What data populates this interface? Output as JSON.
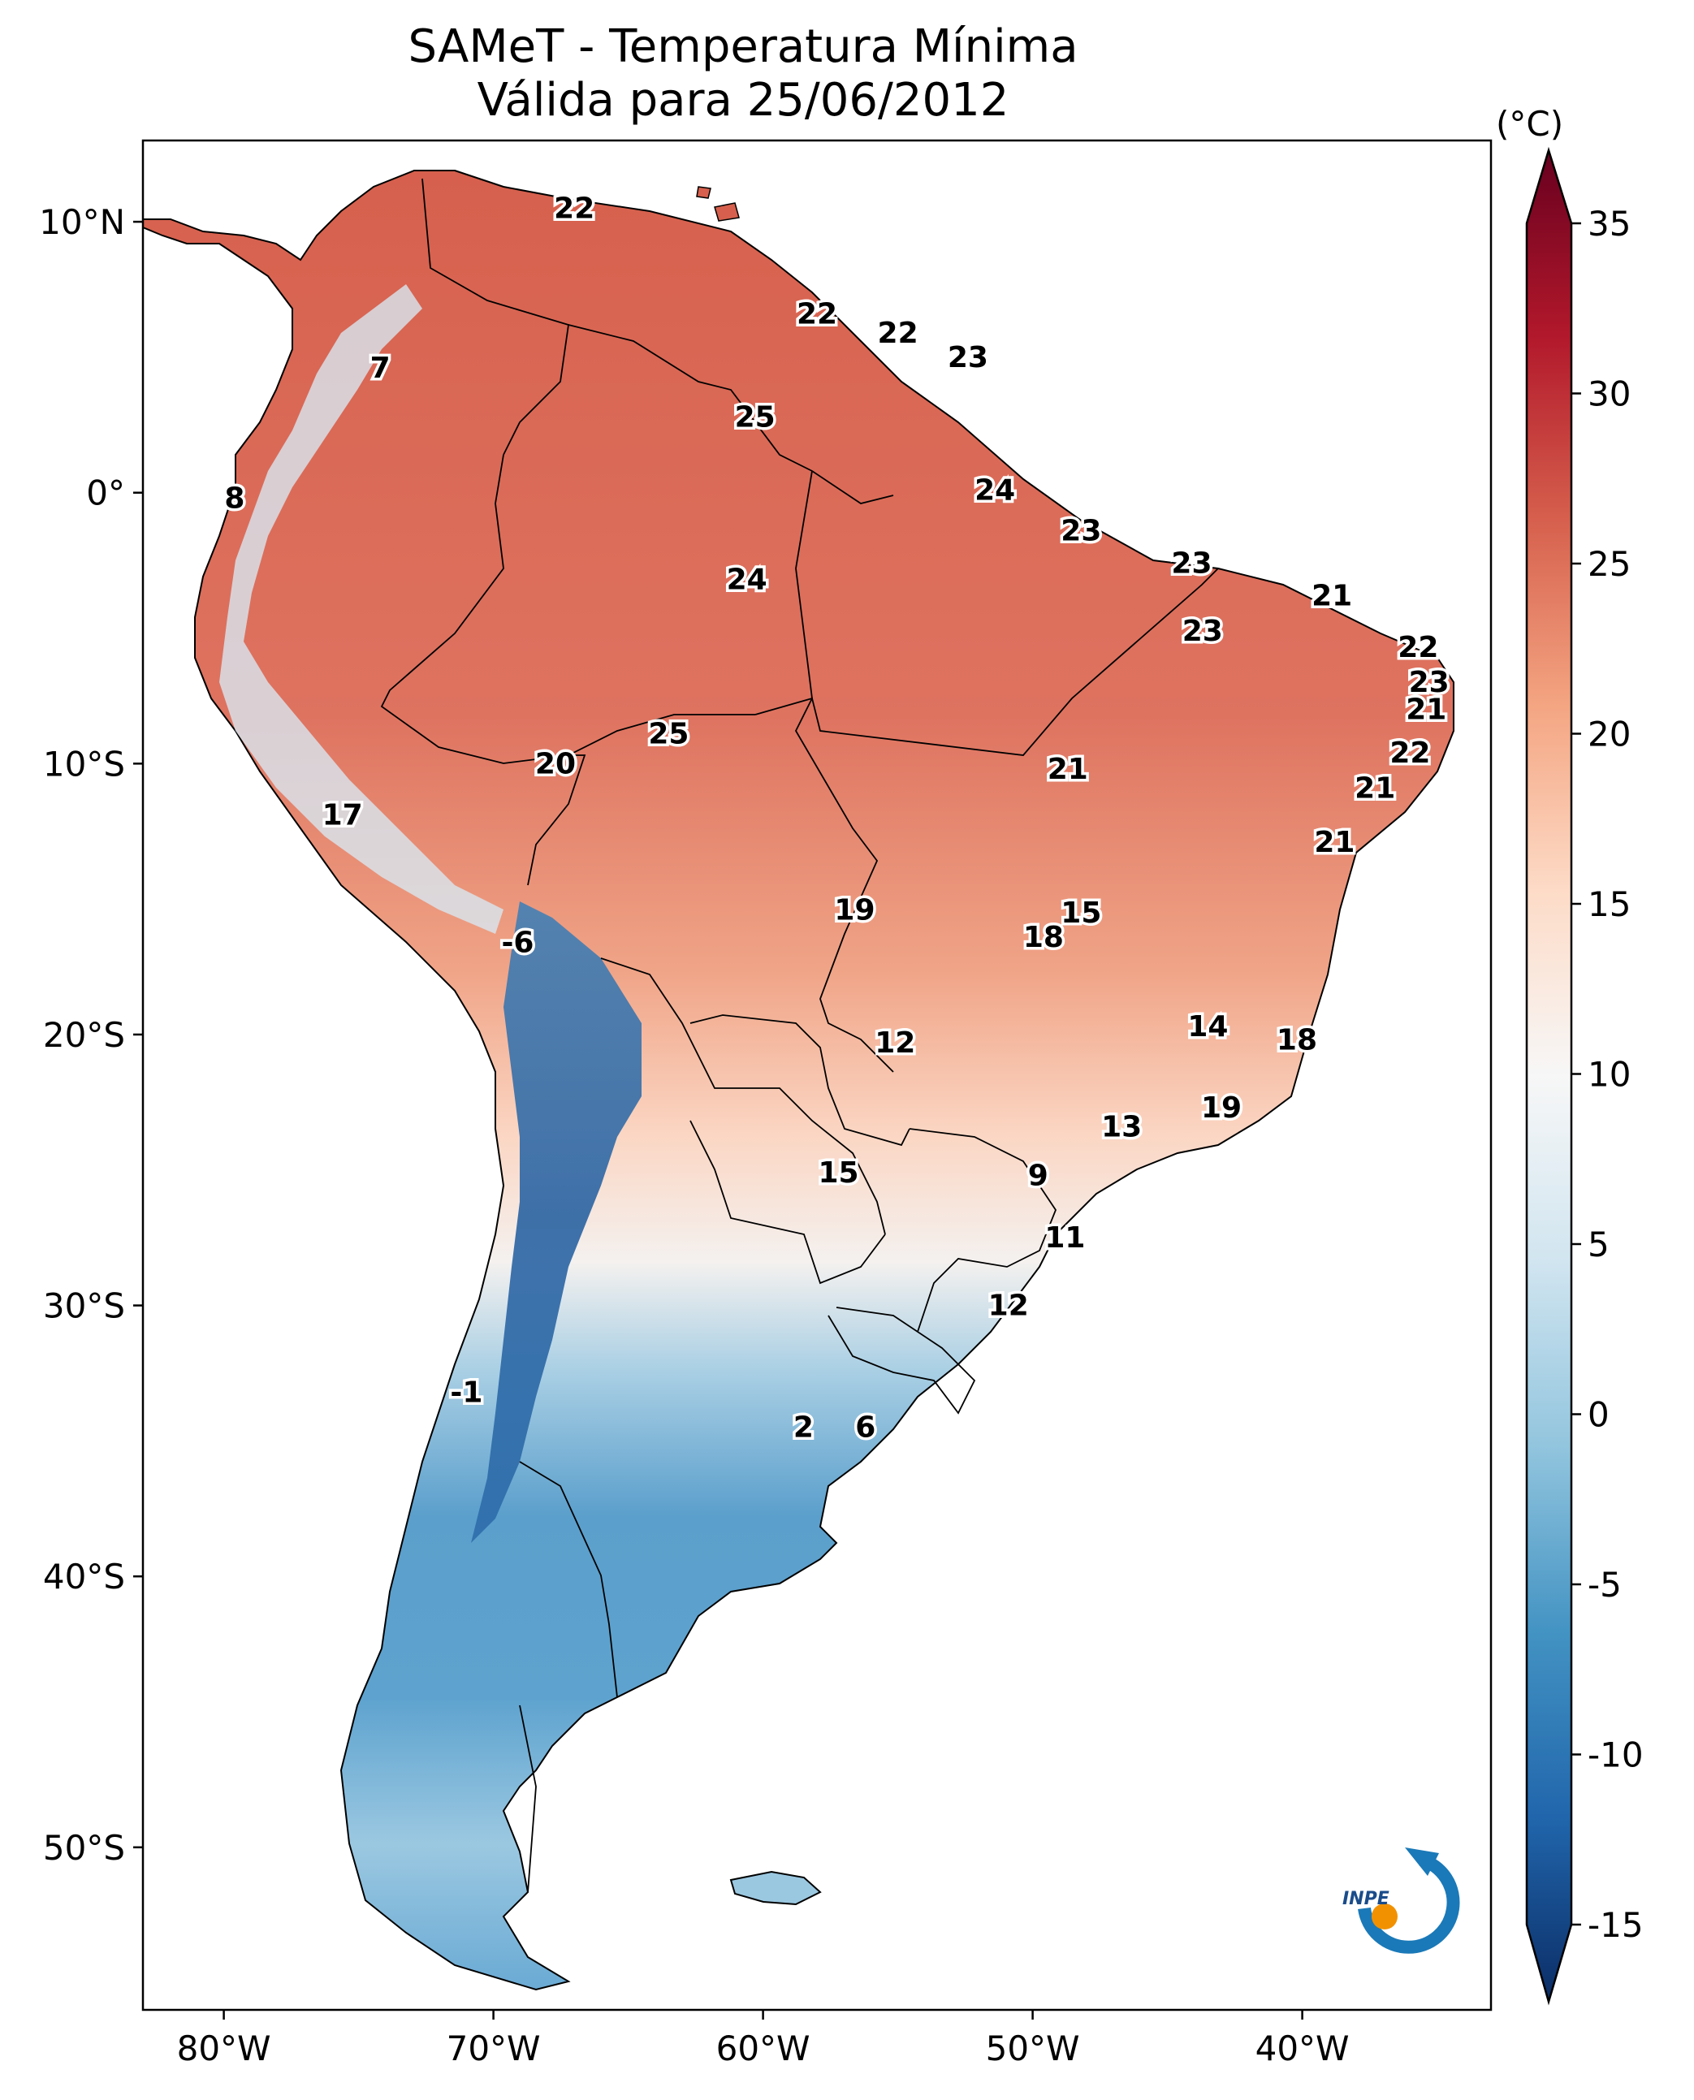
{
  "title": "SAMeT - Temperatura Mínima",
  "subtitle": "Válida para 25/06/2012",
  "colorbar": {
    "unit": "(°C)",
    "min": -15,
    "max": 35,
    "ticks": [
      "35",
      "30",
      "25",
      "20",
      "15",
      "10",
      "5",
      "0",
      "-5",
      "-10",
      "-15"
    ],
    "colors": [
      "#0b2d66",
      "#2166ac",
      "#4393c3",
      "#92c5de",
      "#d1e5f0",
      "#f7f7f7",
      "#fddbc7",
      "#f4a582",
      "#d6604d",
      "#b2182b",
      "#67001f"
    ]
  },
  "axes": {
    "lon_ticks": [
      "80°W",
      "70°W",
      "60°W",
      "50°W",
      "40°W"
    ],
    "lat_ticks": [
      "10°N",
      "0°",
      "10°S",
      "20°S",
      "30°S",
      "40°S",
      "50°S"
    ],
    "lon_range": [
      -83,
      -33
    ],
    "lat_range": [
      -56,
      13
    ]
  },
  "point_labels": [
    {
      "lon": -67,
      "lat": 10.5,
      "value": "22"
    },
    {
      "lon": -58,
      "lat": 6.6,
      "value": "22"
    },
    {
      "lon": -55,
      "lat": 5.9,
      "value": "22"
    },
    {
      "lon": -52.4,
      "lat": 5.0,
      "value": "23"
    },
    {
      "lon": -74.2,
      "lat": 4.6,
      "value": "7"
    },
    {
      "lon": -60.3,
      "lat": 2.8,
      "value": "25"
    },
    {
      "lon": -51.4,
      "lat": 0.1,
      "value": "24"
    },
    {
      "lon": -79.6,
      "lat": -0.2,
      "value": "8"
    },
    {
      "lon": -48.2,
      "lat": -1.4,
      "value": "23"
    },
    {
      "lon": -44.1,
      "lat": -2.6,
      "value": "23"
    },
    {
      "lon": -38.9,
      "lat": -3.8,
      "value": "21"
    },
    {
      "lon": -60.6,
      "lat": -3.2,
      "value": "24"
    },
    {
      "lon": -43.7,
      "lat": -5.1,
      "value": "23"
    },
    {
      "lon": -35.7,
      "lat": -5.7,
      "value": "22"
    },
    {
      "lon": -35.3,
      "lat": -7.0,
      "value": "23"
    },
    {
      "lon": -35.4,
      "lat": -8.0,
      "value": "21"
    },
    {
      "lon": -36,
      "lat": -9.6,
      "value": "22"
    },
    {
      "lon": -63.5,
      "lat": -8.9,
      "value": "25"
    },
    {
      "lon": -67.7,
      "lat": -10.0,
      "value": "20"
    },
    {
      "lon": -48.7,
      "lat": -10.2,
      "value": "21"
    },
    {
      "lon": -37.3,
      "lat": -10.9,
      "value": "21"
    },
    {
      "lon": -75.6,
      "lat": -11.9,
      "value": "17"
    },
    {
      "lon": -38.8,
      "lat": -12.9,
      "value": "21"
    },
    {
      "lon": -56.6,
      "lat": -15.4,
      "value": "19"
    },
    {
      "lon": -48.2,
      "lat": -15.5,
      "value": "15"
    },
    {
      "lon": -49.6,
      "lat": -16.4,
      "value": "18"
    },
    {
      "lon": -69.1,
      "lat": -16.6,
      "value": "-6"
    },
    {
      "lon": -43.5,
      "lat": -19.7,
      "value": "14"
    },
    {
      "lon": -40.2,
      "lat": -20.2,
      "value": "18"
    },
    {
      "lon": -55.1,
      "lat": -20.3,
      "value": "12"
    },
    {
      "lon": -43,
      "lat": -22.7,
      "value": "19"
    },
    {
      "lon": -46.7,
      "lat": -23.4,
      "value": "13"
    },
    {
      "lon": -57.2,
      "lat": -25.1,
      "value": "15"
    },
    {
      "lon": -49.8,
      "lat": -25.2,
      "value": "9"
    },
    {
      "lon": -48.8,
      "lat": -27.5,
      "value": "11"
    },
    {
      "lon": -50.9,
      "lat": -30.0,
      "value": "12"
    },
    {
      "lon": -71,
      "lat": -33.2,
      "value": "-1"
    },
    {
      "lon": -58.5,
      "lat": -34.5,
      "value": "2"
    },
    {
      "lon": -56.2,
      "lat": -34.5,
      "value": "6"
    }
  ],
  "logo": {
    "text": "INPE"
  }
}
